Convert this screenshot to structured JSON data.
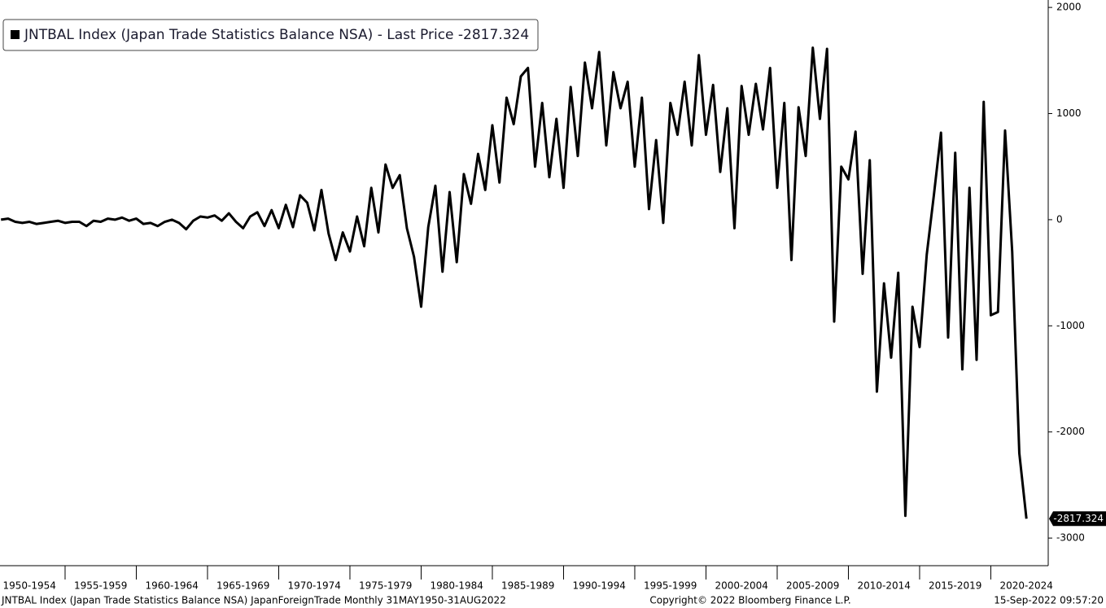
{
  "chart_data": {
    "type": "line",
    "x": [
      1950.5,
      1951,
      1951.5,
      1952,
      1952.5,
      1953,
      1953.5,
      1954,
      1954.5,
      1955,
      1955.5,
      1956,
      1956.5,
      1957,
      1957.5,
      1958,
      1958.5,
      1959,
      1959.5,
      1960,
      1960.5,
      1961,
      1961.5,
      1962,
      1962.5,
      1963,
      1963.5,
      1964,
      1964.5,
      1965,
      1965.5,
      1966,
      1966.5,
      1967,
      1967.5,
      1968,
      1968.5,
      1969,
      1969.5,
      1970,
      1970.5,
      1971,
      1971.5,
      1972,
      1972.5,
      1973,
      1973.5,
      1974,
      1974.5,
      1975,
      1975.5,
      1976,
      1976.5,
      1977,
      1977.5,
      1978,
      1978.5,
      1979,
      1979.5,
      1980,
      1980.5,
      1981,
      1981.5,
      1982,
      1982.5,
      1983,
      1983.5,
      1984,
      1984.5,
      1985,
      1985.5,
      1986,
      1986.5,
      1987,
      1987.5,
      1988,
      1988.5,
      1989,
      1989.5,
      1990,
      1990.5,
      1991,
      1991.5,
      1992,
      1992.5,
      1993,
      1993.5,
      1994,
      1994.5,
      1995,
      1995.5,
      1996,
      1996.5,
      1997,
      1997.5,
      1998,
      1998.5,
      1999,
      1999.5,
      2000,
      2000.5,
      2001,
      2001.5,
      2002,
      2002.5,
      2003,
      2003.5,
      2004,
      2004.5,
      2005,
      2005.5,
      2006,
      2006.5,
      2007,
      2007.5,
      2008,
      2008.5,
      2009,
      2009.5,
      2010,
      2010.5,
      2011,
      2011.5,
      2012,
      2012.5,
      2013,
      2013.5,
      2014,
      2014.5,
      2015,
      2015.5,
      2016,
      2016.5,
      2017,
      2017.5,
      2018,
      2018.5,
      2019,
      2019.5,
      2020,
      2020.5,
      2021,
      2021.5,
      2022,
      2022.5
    ],
    "series": [
      {
        "name": "JNTBAL Index (Japan Trade Statistics Balance NSA) - Last Price -2817.324",
        "color": "#000000",
        "values": [
          0,
          10,
          -20,
          -30,
          -20,
          -40,
          -30,
          -20,
          -10,
          -30,
          -20,
          -20,
          -60,
          -10,
          -20,
          10,
          0,
          20,
          -10,
          10,
          -40,
          -30,
          -60,
          -20,
          0,
          -30,
          -90,
          -10,
          30,
          20,
          40,
          -10,
          60,
          -20,
          -80,
          30,
          70,
          -60,
          90,
          -80,
          140,
          -70,
          230,
          160,
          -100,
          280,
          -130,
          -380,
          -120,
          -300,
          30,
          -250,
          300,
          -120,
          520,
          300,
          420,
          -80,
          -350,
          -820,
          -70,
          320,
          -490,
          260,
          -400,
          430,
          150,
          620,
          280,
          890,
          350,
          1150,
          900,
          1350,
          1430,
          500,
          1100,
          400,
          950,
          300,
          1250,
          600,
          1480,
          1050,
          1580,
          700,
          1390,
          1050,
          1300,
          500,
          1150,
          100,
          750,
          -30,
          1100,
          800,
          1300,
          700,
          1550,
          800,
          1270,
          450,
          1050,
          -80,
          1260,
          800,
          1280,
          850,
          1430,
          300,
          1100,
          -380,
          1060,
          600,
          1620,
          950,
          1610,
          -960,
          500,
          380,
          830,
          -510,
          560,
          -1620,
          -600,
          -1300,
          -500,
          -2790,
          -820,
          -1200,
          -330,
          230,
          820,
          -1110,
          630,
          -1410,
          300,
          -1320,
          1110,
          -900,
          -870,
          840,
          -300,
          -2200,
          -2817.324
        ]
      }
    ],
    "last_value": -2817.324,
    "categories": [
      "1950-1954",
      "1955-1959",
      "1960-1964",
      "1965-1969",
      "1970-1974",
      "1975-1979",
      "1980-1984",
      "1985-1989",
      "1990-1994",
      "1995-1999",
      "2000-2004",
      "2005-2009",
      "2010-2014",
      "2015-2019",
      "2020-2024"
    ],
    "xticks": [
      1950,
      1955,
      1960,
      1965,
      1970,
      1975,
      1980,
      1985,
      1990,
      1995,
      2000,
      2005,
      2010,
      2015,
      2020
    ],
    "xlim": [
      1950.43,
      2024.03
    ],
    "ylim": [
      -3260,
      2070
    ],
    "yticks": [
      2000,
      1000,
      0,
      -1000,
      -2000,
      -3000
    ],
    "footer_left": "JNTBAL Index (Japan Trade Statistics Balance NSA) JapanForeignTrade  Monthly 31MAY1950-31AUG2022",
    "footer_center": "Copyright© 2022 Bloomberg Finance L.P.",
    "footer_right": "15-Sep-2022 09:57:20"
  }
}
